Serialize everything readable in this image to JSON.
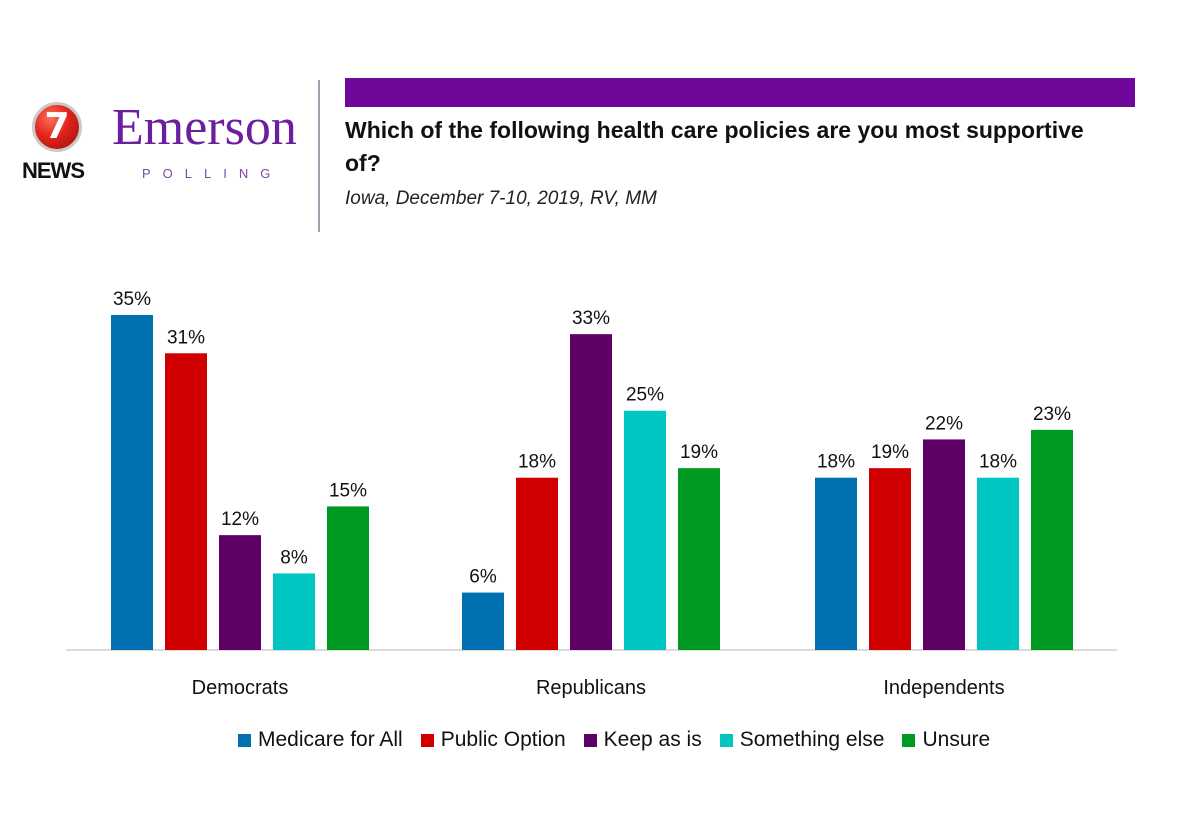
{
  "logo": {
    "seven": "7",
    "news": "NEWS",
    "brand": "Emerson",
    "brand_sub": "POLLING"
  },
  "header": {
    "title": "Which of the following health care policies are you most supportive of?",
    "subtitle": "Iowa, December 7-10, 2019, RV, MM",
    "accent_color": "#6f079a"
  },
  "chart_data": {
    "type": "bar",
    "categories": [
      "Democrats",
      "Republicans",
      "Independents"
    ],
    "series": [
      {
        "name": "Medicare for All",
        "color": "#0070b0",
        "values": [
          35,
          6,
          18
        ]
      },
      {
        "name": "Public Option",
        "color": "#d00000",
        "values": [
          31,
          18,
          19
        ]
      },
      {
        "name": "Keep as is",
        "color": "#5e0064",
        "values": [
          12,
          33,
          22
        ]
      },
      {
        "name": "Something else",
        "color": "#00c6c1",
        "values": [
          8,
          25,
          18
        ]
      },
      {
        "name": "Unsure",
        "color": "#009a22",
        "values": [
          15,
          19,
          23
        ]
      }
    ],
    "value_suffix": "%",
    "ylim": [
      0,
      35
    ],
    "grid": false,
    "legend_position": "bottom",
    "xlabel": "",
    "ylabel": ""
  }
}
